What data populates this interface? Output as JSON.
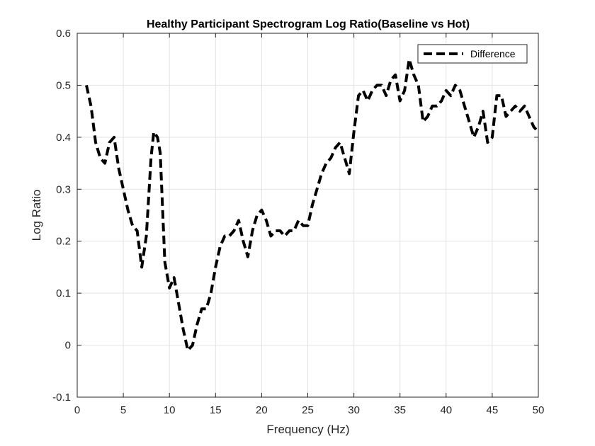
{
  "chart_data": {
    "type": "line",
    "title": "Healthy Participant Spectrogram Log Ratio(Baseline vs Hot)",
    "xlabel": "Frequency (Hz)",
    "ylabel": "Log Ratio",
    "xlim": [
      0,
      50
    ],
    "ylim": [
      -0.1,
      0.6
    ],
    "x_ticks": [
      "0",
      "5",
      "10",
      "15",
      "20",
      "25",
      "30",
      "35",
      "40",
      "45",
      "50"
    ],
    "y_ticks": [
      "-0.1",
      "0",
      "0.1",
      "0.2",
      "0.3",
      "0.4",
      "0.5",
      "0.6"
    ],
    "grid": true,
    "legend_position": "top-right",
    "series": [
      {
        "name": "Difference",
        "color": "#000000",
        "line_style": "dashed",
        "x": [
          1.0,
          1.5,
          2.0,
          2.5,
          3.0,
          3.5,
          4.0,
          4.5,
          5.0,
          5.5,
          6.0,
          6.5,
          7.0,
          7.5,
          8.0,
          8.3,
          8.7,
          9.0,
          9.5,
          10.0,
          10.5,
          11.0,
          11.5,
          12.0,
          12.5,
          13.0,
          13.5,
          14.0,
          14.5,
          15.0,
          15.5,
          16.0,
          16.5,
          17.0,
          17.5,
          18.0,
          18.5,
          19.0,
          19.5,
          20.0,
          20.5,
          21.0,
          21.5,
          22.0,
          22.5,
          23.0,
          23.5,
          24.0,
          24.5,
          25.0,
          25.5,
          26.0,
          26.5,
          27.0,
          27.5,
          28.0,
          28.5,
          29.0,
          29.5,
          30.0,
          30.5,
          31.0,
          31.5,
          32.0,
          32.5,
          33.0,
          33.5,
          34.0,
          34.5,
          35.0,
          35.5,
          36.0,
          36.5,
          37.0,
          37.5,
          38.0,
          38.5,
          39.0,
          39.5,
          40.0,
          40.5,
          41.0,
          41.5,
          42.0,
          42.5,
          43.0,
          43.5,
          44.0,
          44.5,
          45.0,
          45.5,
          46.0,
          46.5,
          47.0,
          47.5,
          48.0,
          48.5,
          49.0,
          49.5,
          50.0
        ],
        "y": [
          0.5,
          0.46,
          0.39,
          0.36,
          0.35,
          0.39,
          0.4,
          0.34,
          0.3,
          0.26,
          0.23,
          0.22,
          0.15,
          0.21,
          0.36,
          0.41,
          0.4,
          0.37,
          0.16,
          0.11,
          0.13,
          0.08,
          0.03,
          -0.01,
          0.0,
          0.04,
          0.07,
          0.07,
          0.1,
          0.15,
          0.19,
          0.21,
          0.21,
          0.22,
          0.24,
          0.2,
          0.17,
          0.22,
          0.25,
          0.26,
          0.24,
          0.21,
          0.22,
          0.22,
          0.21,
          0.22,
          0.22,
          0.24,
          0.23,
          0.23,
          0.27,
          0.3,
          0.33,
          0.35,
          0.36,
          0.38,
          0.39,
          0.36,
          0.33,
          0.41,
          0.48,
          0.49,
          0.47,
          0.49,
          0.5,
          0.5,
          0.48,
          0.51,
          0.52,
          0.47,
          0.49,
          0.55,
          0.52,
          0.5,
          0.43,
          0.44,
          0.46,
          0.46,
          0.47,
          0.49,
          0.48,
          0.5,
          0.49,
          0.46,
          0.43,
          0.4,
          0.42,
          0.45,
          0.39,
          0.4,
          0.48,
          0.48,
          0.44,
          0.45,
          0.46,
          0.45,
          0.46,
          0.44,
          0.42,
          0.41
        ]
      }
    ]
  }
}
